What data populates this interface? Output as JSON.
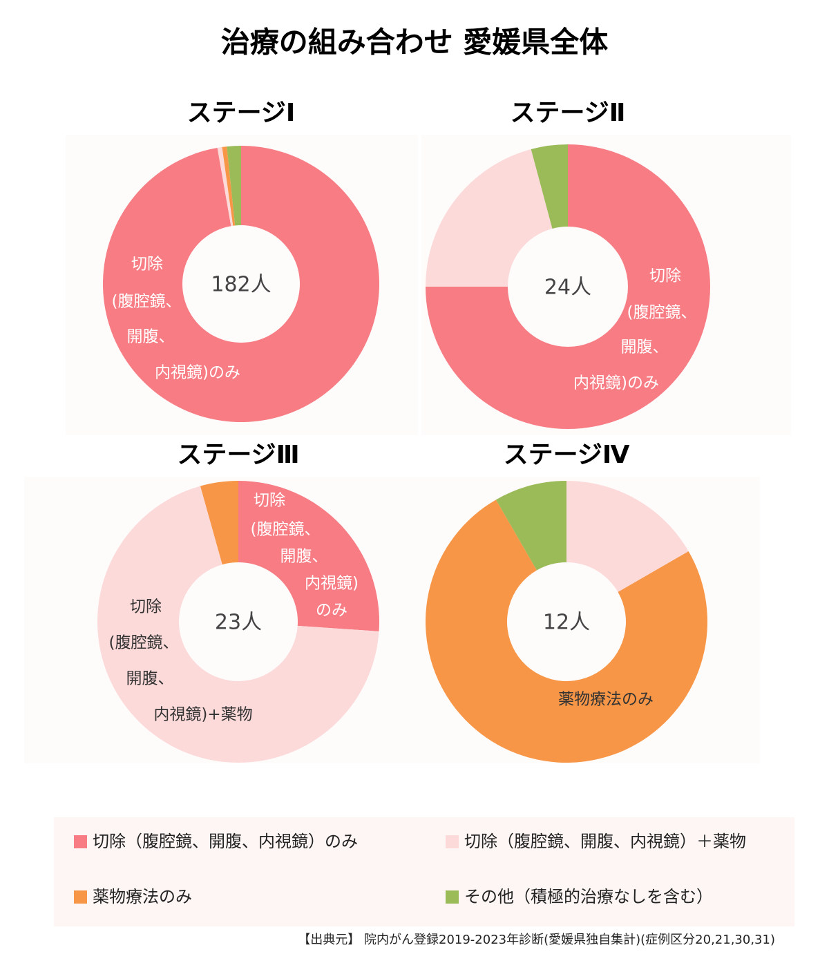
{
  "title": "治療の組み合わせ 愛媛県全体",
  "source": "【出典元】 院内がん登録2019-2023年診断(愛媛県独自集計)(症例区分20,21,30,31)",
  "chart_data": [
    {
      "type": "donut",
      "title": "ステージⅠ",
      "center_label": "182人",
      "categories": [
        "切除（腹腔鏡、開腹、内視鏡）のみ",
        "切除（腹腔鏡、開腹、内視鏡）＋薬物",
        "薬物療法のみ",
        "その他（積極的治療なしを含む）"
      ],
      "colors": [
        "#f77c83",
        "#fddada",
        "#f79646",
        "#9bbb59"
      ],
      "values": [
        177,
        1,
        1,
        3
      ],
      "annotations": [
        [
          "切除",
          "(腹腔鏡、",
          "開腹、",
          "内視鏡)のみ"
        ]
      ]
    },
    {
      "type": "donut",
      "title": "ステージⅡ",
      "center_label": "24人",
      "categories": [
        "切除（腹腔鏡、開腹、内視鏡）のみ",
        "切除（腹腔鏡、開腹、内視鏡）＋薬物",
        "薬物療法のみ",
        "その他（積極的治療なしを含む）"
      ],
      "colors": [
        "#f77c83",
        "#fddada",
        "#f79646",
        "#9bbb59"
      ],
      "values": [
        18,
        5,
        0,
        1
      ],
      "annotations": [
        [
          "切除",
          "(腹腔鏡、",
          "開腹、",
          "内視鏡)のみ"
        ]
      ]
    },
    {
      "type": "donut",
      "title": "ステージⅢ",
      "center_label": "23人",
      "categories": [
        "切除（腹腔鏡、開腹、内視鏡）のみ",
        "切除（腹腔鏡、開腹、内視鏡）＋薬物",
        "薬物療法のみ",
        "その他（積極的治療なしを含む）"
      ],
      "colors": [
        "#f77c83",
        "#fddada",
        "#f79646",
        "#9bbb59"
      ],
      "values": [
        6,
        16,
        1,
        0
      ],
      "annotations": [
        [
          "切除",
          "(腹腔鏡、",
          "開腹、",
          "内視鏡)",
          "のみ"
        ],
        [
          "切除",
          "(腹腔鏡、",
          "開腹、",
          "内視鏡)+薬物"
        ]
      ]
    },
    {
      "type": "donut",
      "title": "ステージⅣ",
      "center_label": "12人",
      "categories": [
        "切除（腹腔鏡、開腹、内視鏡）のみ",
        "切除（腹腔鏡、開腹、内視鏡）＋薬物",
        "薬物療法のみ",
        "その他（積極的治療なしを含む）"
      ],
      "colors": [
        "#f77c83",
        "#fddada",
        "#f79646",
        "#9bbb59"
      ],
      "values": [
        0,
        2,
        9,
        1
      ],
      "annotations": [
        [
          "薬物療法のみ"
        ]
      ]
    }
  ]
}
